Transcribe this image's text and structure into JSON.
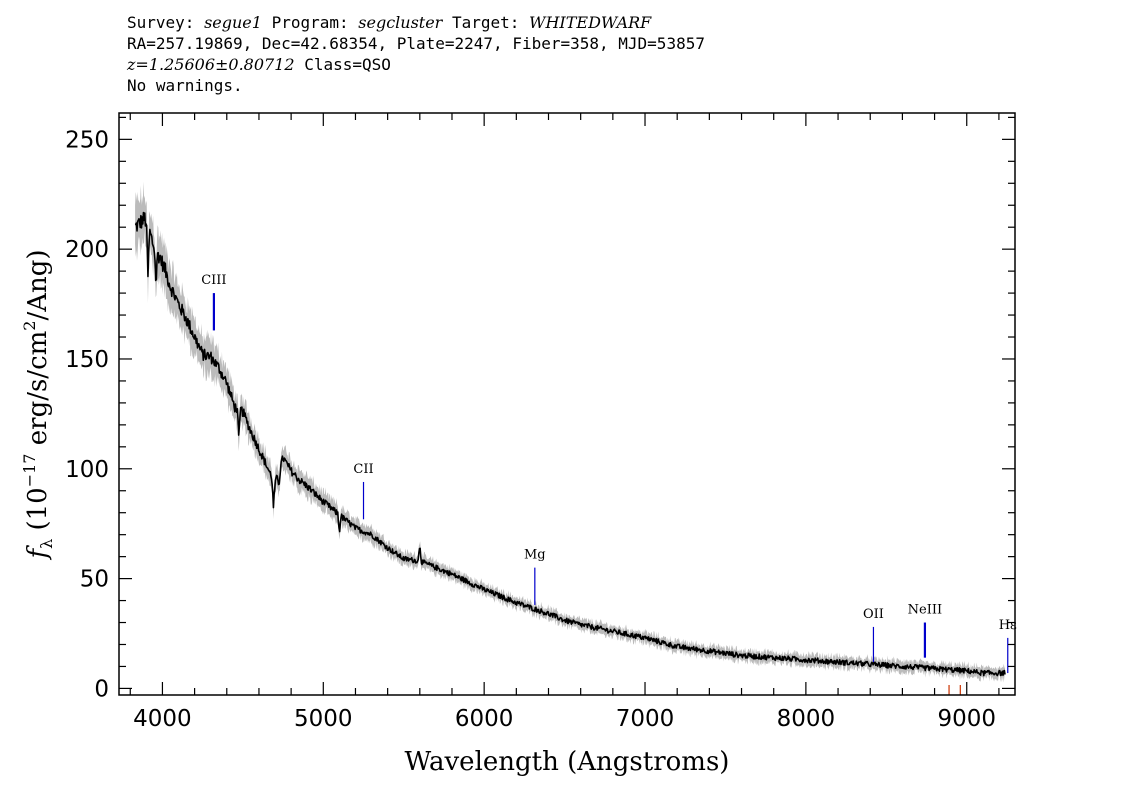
{
  "header": {
    "survey_label": "Survey: ",
    "survey": "segue1",
    "program_label": " Program: ",
    "program": "segcluster",
    "target_label": " Target: ",
    "target": "WHITEDWARF",
    "line2": "RA=257.19869, Dec=42.68354, Plate=2247, Fiber=358, MJD=53857",
    "redshift": "z=1.25606±0.80712",
    "class_text": " Class=QSO",
    "warnings": "No warnings."
  },
  "chart_data": {
    "type": "line",
    "xlabel": "Wavelength (Angstroms)",
    "ylabel_parts": [
      "f",
      "λ",
      " (10",
      "−17",
      " erg/s/cm",
      "2",
      "/Ang)"
    ],
    "xlim": [
      3730,
      9300
    ],
    "ylim": [
      -3,
      262
    ],
    "x_ticks": [
      4000,
      5000,
      6000,
      7000,
      8000,
      9000
    ],
    "y_ticks": [
      0,
      50,
      100,
      150,
      200,
      250
    ],
    "flux_color": "#000000",
    "error_color": "#bbbbbb",
    "line_color": "#0000cc",
    "sky_color": "#cc3300",
    "series": [
      {
        "x": [
          3830,
          3860,
          3890,
          3920,
          3950,
          3980,
          4010,
          4050,
          4100,
          4150,
          4200,
          4250,
          4300,
          4350,
          4400,
          4450,
          4500,
          4550,
          4600,
          4650,
          4700,
          4750,
          4800,
          4850,
          4900,
          5000,
          5100,
          5200,
          5300,
          5400,
          5500,
          5600,
          5700,
          5800,
          6000,
          6200,
          6400,
          6500,
          6600,
          6800,
          7000,
          7200,
          7400,
          7600,
          7800,
          8000,
          8200,
          8400,
          8600,
          8800,
          9000,
          9100,
          9200,
          9240
        ],
        "y": [
          210,
          212,
          214,
          208,
          200,
          197,
          192,
          183,
          175,
          168,
          160,
          152,
          151,
          146,
          139,
          128,
          126,
          117,
          109,
          101,
          93,
          105,
          99,
          95,
          92,
          85,
          79,
          73,
          70,
          64,
          59,
          58,
          55,
          52,
          45,
          39,
          34,
          31,
          29,
          26,
          23,
          19,
          17,
          15,
          14,
          13,
          12,
          11,
          10,
          9,
          8,
          7,
          7,
          7
        ]
      }
    ],
    "absorption_features": [
      {
        "x": 3910,
        "depth": 22
      },
      {
        "x": 3960,
        "depth": 15
      },
      {
        "x": 4475,
        "depth": 14
      },
      {
        "x": 4690,
        "depth": 12
      },
      {
        "x": 4725,
        "depth": 6
      },
      {
        "x": 5100,
        "depth": 8
      },
      {
        "x": 5600,
        "depth": -8
      }
    ],
    "emission_lines": [
      {
        "label": "CIII",
        "x": 4320,
        "y_low": 163,
        "y_high": 180,
        "heavy": true
      },
      {
        "label": "CII",
        "x": 5250,
        "y_low": 77,
        "y_high": 94,
        "heavy": false
      },
      {
        "label": "Mg",
        "x": 6315,
        "y_low": 38,
        "y_high": 55,
        "heavy": false
      },
      {
        "label": "OII",
        "x": 8420,
        "y_low": 12,
        "y_high": 28,
        "heavy": false
      },
      {
        "label": "NeIII",
        "x": 8740,
        "y_low": 14,
        "y_high": 30,
        "heavy": true
      },
      {
        "label": "Hε",
        "x": 9255,
        "y_low": 7,
        "y_high": 23,
        "heavy": false
      }
    ],
    "sky_markers": [
      8890,
      8960
    ]
  }
}
